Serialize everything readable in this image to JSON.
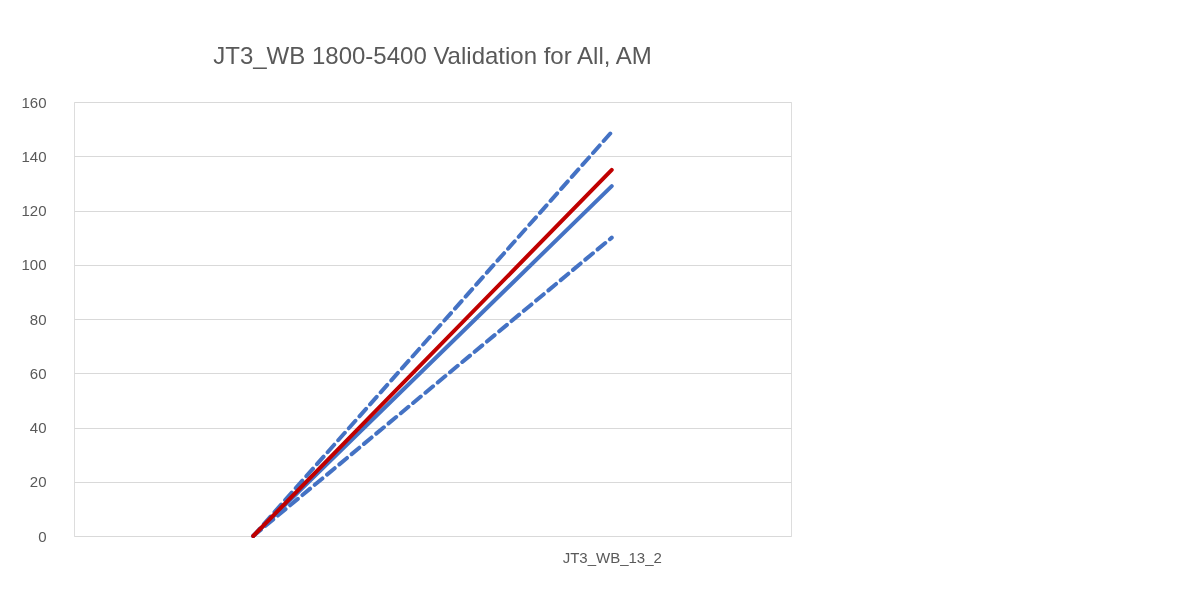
{
  "chart_data": {
    "type": "line",
    "title": "JT3_WB 1800-5400 Validation for All, AM",
    "categories": [
      null,
      "JT3_WB_13_2"
    ],
    "series": [
      {
        "color": "#4472c4",
        "values": [
          0,
          149
        ],
        "line_style": "dashed"
      },
      {
        "color": "#4472c4",
        "values": [
          0,
          110
        ],
        "line_style": "dashed"
      },
      {
        "color": "#4472c4",
        "values": [
          0,
          129
        ],
        "line_style": "solid"
      },
      {
        "color": "#c00000",
        "values": [
          0,
          135
        ],
        "line_style": "solid"
      }
    ],
    "ylim": [
      0,
      160
    ],
    "yticks": [
      0,
      20,
      40,
      60,
      80,
      100,
      120,
      140,
      160
    ],
    "grid": "y",
    "marker": "none"
  }
}
